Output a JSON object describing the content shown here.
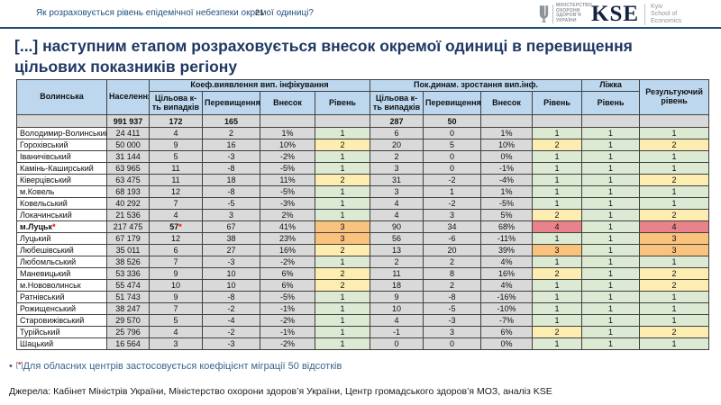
{
  "page_header": {
    "question": "Як розраховується рівень епідемічної небезпеки окремої одиниці?",
    "page_number": "21",
    "moh_logo_lines": [
      "МІНІСТЕРСТВО",
      "ОХОРОНИ",
      "ЗДОРОВ’Я",
      "УКРАЇНИ"
    ],
    "kse_logo": {
      "word": "KSE",
      "subtitle_lines": [
        "Kyiv",
        "School of",
        "Economics"
      ]
    }
  },
  "title": "[...] наступним етапом розраховується внесок окремої одиниці в перевищення цільових показників регіону",
  "level_colors": {
    "1": "#dce9d3",
    "2": "#feedb0",
    "3": "#f9c27d",
    "4": "#e8838b"
  },
  "table": {
    "region_label": "Волинська",
    "col_population": "Населення",
    "group1_label": "Коеф.виявлення вип. інфікування",
    "group2_label": "Пок.динам. зростання вип.інф.",
    "group_beds_label": "Ліжка",
    "col_result_label": "Результуючий рівень",
    "sub_target": "Цільова к-ть випадків",
    "sub_exceed": "Перевищення",
    "sub_contrib": "Внесок",
    "sub_level": "Рівень",
    "summary": {
      "population": "991 937",
      "g1_target": "172",
      "g1_exceed": "165",
      "g2_target": "287",
      "g2_exceed": "50"
    },
    "rows": [
      {
        "name": "Володимир-Волинський",
        "population": "24 411",
        "g1": {
          "target": "4",
          "exceed": "2",
          "contrib": "1%",
          "level": "1"
        },
        "g2": {
          "target": "6",
          "exceed": "0",
          "contrib": "1%",
          "level": "1"
        },
        "beds_level": "1",
        "result_level": "1"
      },
      {
        "name": "Горохівський",
        "population": "50 000",
        "g1": {
          "target": "9",
          "exceed": "16",
          "contrib": "10%",
          "level": "2"
        },
        "g2": {
          "target": "20",
          "exceed": "5",
          "contrib": "10%",
          "level": "2"
        },
        "beds_level": "1",
        "result_level": "2"
      },
      {
        "name": "Іваничівський",
        "population": "31 144",
        "g1": {
          "target": "5",
          "exceed": "-3",
          "contrib": "-2%",
          "level": "1"
        },
        "g2": {
          "target": "2",
          "exceed": "0",
          "contrib": "0%",
          "level": "1"
        },
        "beds_level": "1",
        "result_level": "1"
      },
      {
        "name": "Камінь-Каширський",
        "population": "63 965",
        "g1": {
          "target": "11",
          "exceed": "-8",
          "contrib": "-5%",
          "level": "1"
        },
        "g2": {
          "target": "3",
          "exceed": "0",
          "contrib": "-1%",
          "level": "1"
        },
        "beds_level": "1",
        "result_level": "1"
      },
      {
        "name": "Ківерцівський",
        "population": "63 475",
        "g1": {
          "target": "11",
          "exceed": "18",
          "contrib": "11%",
          "level": "2"
        },
        "g2": {
          "target": "31",
          "exceed": "-2",
          "contrib": "-4%",
          "level": "1"
        },
        "beds_level": "1",
        "result_level": "2"
      },
      {
        "name": "м.Ковель",
        "population": "68 193",
        "g1": {
          "target": "12",
          "exceed": "-8",
          "contrib": "-5%",
          "level": "1"
        },
        "g2": {
          "target": "3",
          "exceed": "1",
          "contrib": "1%",
          "level": "1"
        },
        "beds_level": "1",
        "result_level": "1"
      },
      {
        "name": "Ковельський",
        "population": "40 292",
        "g1": {
          "target": "7",
          "exceed": "-5",
          "contrib": "-3%",
          "level": "1"
        },
        "g2": {
          "target": "4",
          "exceed": "-2",
          "contrib": "-5%",
          "level": "1"
        },
        "beds_level": "1",
        "result_level": "1"
      },
      {
        "name": "Локачинський",
        "population": "21 536",
        "g1": {
          "target": "4",
          "exceed": "3",
          "contrib": "2%",
          "level": "1"
        },
        "g2": {
          "target": "4",
          "exceed": "3",
          "contrib": "5%",
          "level": "2"
        },
        "beds_level": "1",
        "result_level": "2"
      },
      {
        "name": "м.Луцьк",
        "name_star": true,
        "bold": true,
        "target_star": true,
        "population": "217 475",
        "g1": {
          "target": "57",
          "exceed": "67",
          "contrib": "41%",
          "level": "3"
        },
        "g2": {
          "target": "90",
          "exceed": "34",
          "contrib": "68%",
          "level": "4"
        },
        "beds_level": "1",
        "result_level": "4"
      },
      {
        "name": "Луцький",
        "population": "67 179",
        "g1": {
          "target": "12",
          "exceed": "38",
          "contrib": "23%",
          "level": "3"
        },
        "g2": {
          "target": "56",
          "exceed": "-6",
          "contrib": "-11%",
          "level": "1"
        },
        "beds_level": "1",
        "result_level": "3"
      },
      {
        "name": "Любешівський",
        "population": "35 011",
        "g1": {
          "target": "6",
          "exceed": "27",
          "contrib": "16%",
          "level": "2"
        },
        "g2": {
          "target": "13",
          "exceed": "20",
          "contrib": "39%",
          "level": "3"
        },
        "beds_level": "1",
        "result_level": "3"
      },
      {
        "name": "Любомльський",
        "population": "38 526",
        "g1": {
          "target": "7",
          "exceed": "-3",
          "contrib": "-2%",
          "level": "1"
        },
        "g2": {
          "target": "2",
          "exceed": "2",
          "contrib": "4%",
          "level": "1"
        },
        "beds_level": "1",
        "result_level": "1"
      },
      {
        "name": "Маневицький",
        "population": "53 336",
        "g1": {
          "target": "9",
          "exceed": "10",
          "contrib": "6%",
          "level": "2"
        },
        "g2": {
          "target": "11",
          "exceed": "8",
          "contrib": "16%",
          "level": "2"
        },
        "beds_level": "1",
        "result_level": "2"
      },
      {
        "name": "м.Нововолинськ",
        "population": "55 474",
        "g1": {
          "target": "10",
          "exceed": "10",
          "contrib": "6%",
          "level": "2"
        },
        "g2": {
          "target": "18",
          "exceed": "2",
          "contrib": "4%",
          "level": "1"
        },
        "beds_level": "1",
        "result_level": "2"
      },
      {
        "name": "Ратнівський",
        "population": "51 743",
        "g1": {
          "target": "9",
          "exceed": "-8",
          "contrib": "-5%",
          "level": "1"
        },
        "g2": {
          "target": "9",
          "exceed": "-8",
          "contrib": "-16%",
          "level": "1"
        },
        "beds_level": "1",
        "result_level": "1"
      },
      {
        "name": "Рожищенський",
        "population": "38 247",
        "g1": {
          "target": "7",
          "exceed": "-2",
          "contrib": "-1%",
          "level": "1"
        },
        "g2": {
          "target": "10",
          "exceed": "-5",
          "contrib": "-10%",
          "level": "1"
        },
        "beds_level": "1",
        "result_level": "1"
      },
      {
        "name": "Старовижівський",
        "population": "29 570",
        "g1": {
          "target": "5",
          "exceed": "-4",
          "contrib": "-2%",
          "level": "1"
        },
        "g2": {
          "target": "4",
          "exceed": "-3",
          "contrib": "-7%",
          "level": "1"
        },
        "beds_level": "1",
        "result_level": "1"
      },
      {
        "name": "Турійський",
        "population": "25 796",
        "g1": {
          "target": "4",
          "exceed": "-2",
          "contrib": "-1%",
          "level": "1"
        },
        "g2": {
          "target": "-1",
          "exceed": "3",
          "contrib": "6%",
          "level": "2"
        },
        "beds_level": "1",
        "result_level": "2"
      },
      {
        "name": "Шацький",
        "population": "16 564",
        "g1": {
          "target": "3",
          "exceed": "-3",
          "contrib": "-2%",
          "level": "1"
        },
        "g2": {
          "target": "0",
          "exceed": "0",
          "contrib": "0%",
          "level": "1"
        },
        "beds_level": "1",
        "result_level": "1"
      }
    ]
  },
  "footnote": {
    "bullet": "•",
    "bracket_open": "[",
    "star": "*",
    "bracket_close": "]",
    "text": "Для обласних центрів застосовується коефіцієнт міграції 50 відсотків"
  },
  "sources": "Джерела: Кабінет Міністрів України, Міністерство охорони здоров’я України, Центр громадського здоров’я МОЗ, аналіз KSE"
}
